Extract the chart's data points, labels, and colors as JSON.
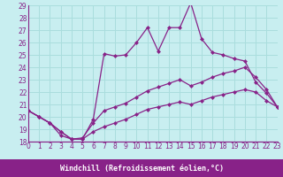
{
  "xlabel": "Windchill (Refroidissement éolien,°C)",
  "bg_color": "#c8eef0",
  "grid_color": "#aadddd",
  "line_color": "#882288",
  "border_color": "#882288",
  "xlim": [
    0,
    23
  ],
  "ylim": [
    18,
    29
  ],
  "xticks": [
    0,
    1,
    2,
    3,
    4,
    5,
    6,
    7,
    8,
    9,
    10,
    11,
    12,
    13,
    14,
    15,
    16,
    17,
    18,
    19,
    20,
    21,
    22,
    23
  ],
  "yticks": [
    18,
    19,
    20,
    21,
    22,
    23,
    24,
    25,
    26,
    27,
    28,
    29
  ],
  "line1_x": [
    0,
    1,
    2,
    3,
    4,
    5,
    6,
    7,
    8,
    9,
    10,
    11,
    12,
    13,
    14,
    15,
    16,
    17,
    18,
    19,
    20,
    21,
    22,
    23
  ],
  "line1_y": [
    20.5,
    20.0,
    19.5,
    18.5,
    18.2,
    18.2,
    19.8,
    25.1,
    24.9,
    25.0,
    26.0,
    27.2,
    25.3,
    27.2,
    27.2,
    29.2,
    26.3,
    25.2,
    25.0,
    24.7,
    24.5,
    22.8,
    21.9,
    20.8
  ],
  "line2_x": [
    0,
    1,
    2,
    3,
    4,
    5,
    6,
    7,
    8,
    9,
    10,
    11,
    12,
    13,
    14,
    15,
    16,
    17,
    18,
    19,
    20,
    21,
    22,
    23
  ],
  "line2_y": [
    20.5,
    20.0,
    19.5,
    18.8,
    18.2,
    18.3,
    19.5,
    20.5,
    20.8,
    21.1,
    21.6,
    22.1,
    22.4,
    22.7,
    23.0,
    22.5,
    22.8,
    23.2,
    23.5,
    23.7,
    24.0,
    23.2,
    22.2,
    20.8
  ],
  "line3_x": [
    0,
    1,
    2,
    3,
    4,
    5,
    6,
    7,
    8,
    9,
    10,
    11,
    12,
    13,
    14,
    15,
    16,
    17,
    18,
    19,
    20,
    21,
    22,
    23
  ],
  "line3_y": [
    20.5,
    20.0,
    19.5,
    18.8,
    18.2,
    18.2,
    18.8,
    19.2,
    19.5,
    19.8,
    20.2,
    20.6,
    20.8,
    21.0,
    21.2,
    21.0,
    21.3,
    21.6,
    21.8,
    22.0,
    22.2,
    22.0,
    21.3,
    20.8
  ],
  "markersize": 2.5,
  "linewidth": 0.9,
  "tick_fontsize": 5.5,
  "xlabel_fontsize": 6.0
}
